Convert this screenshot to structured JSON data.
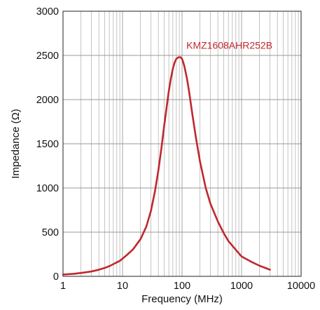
{
  "chart_data": {
    "type": "line",
    "title": "",
    "xlabel": "Frequency (MHz)",
    "ylabel": "Impedance (Ω)",
    "x_scale": "log",
    "xlim": [
      1,
      10000
    ],
    "ylim": [
      0,
      3000
    ],
    "x_ticks": [
      1,
      10,
      100,
      1000,
      10000
    ],
    "x_tick_labels": [
      "1",
      "10",
      "100",
      "1000",
      "10000"
    ],
    "y_ticks": [
      0,
      500,
      1000,
      1500,
      2000,
      2500,
      3000
    ],
    "y_tick_labels": [
      "0",
      "500",
      "1000",
      "1500",
      "2000",
      "2500",
      "3000"
    ],
    "grid": true,
    "series": [
      {
        "name": "KMZ1608AHR252B",
        "color": "#c0282d",
        "x": [
          1,
          1.5,
          2,
          3,
          4,
          5,
          6,
          7,
          8,
          9,
          10,
          12,
          15,
          20,
          25,
          30,
          35,
          40,
          45,
          50,
          55,
          60,
          65,
          70,
          75,
          80,
          85,
          90,
          95,
          100,
          105,
          110,
          120,
          130,
          140,
          150,
          170,
          200,
          250,
          300,
          400,
          500,
          600,
          800,
          1000,
          1500,
          2000,
          3000
        ],
        "y": [
          20,
          28,
          38,
          55,
          75,
          95,
          115,
          138,
          158,
          175,
          200,
          245,
          305,
          420,
          560,
          740,
          960,
          1200,
          1450,
          1700,
          1910,
          2100,
          2240,
          2350,
          2420,
          2460,
          2475,
          2480,
          2478,
          2460,
          2420,
          2370,
          2250,
          2110,
          1960,
          1820,
          1580,
          1300,
          1000,
          820,
          620,
          490,
          400,
          300,
          225,
          160,
          120,
          75
        ]
      }
    ]
  }
}
